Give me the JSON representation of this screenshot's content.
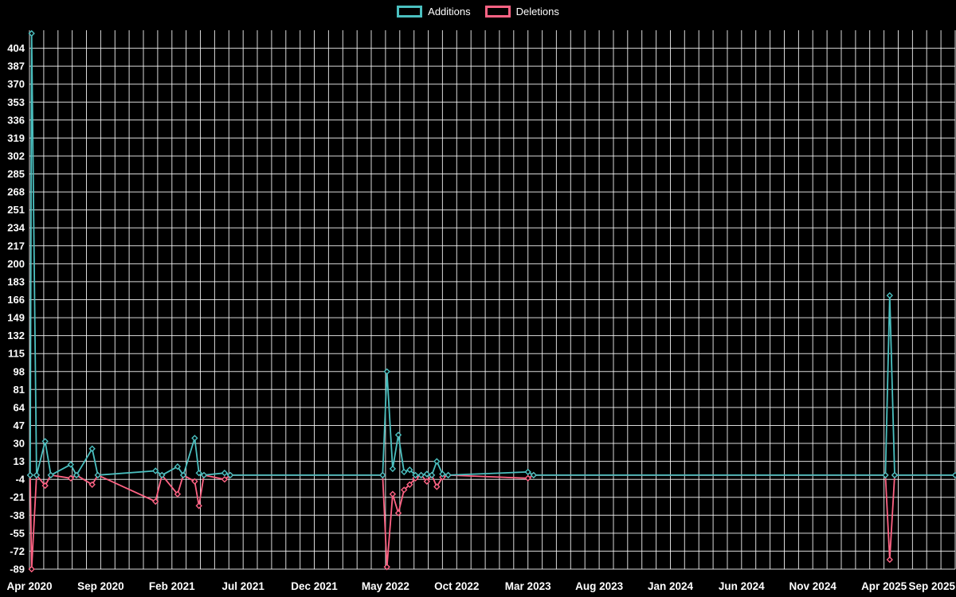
{
  "chart_data": {
    "type": "line",
    "background_color": "#000000",
    "grid_color": "rgba(255,255,255,0.85)",
    "text_color": "#ffffff",
    "legend": {
      "position": "top",
      "items": [
        {
          "label": "Additions",
          "color": "#4bc0c0"
        },
        {
          "label": "Deletions",
          "color": "#ff6384"
        }
      ]
    },
    "x_axis": {
      "unit": "month",
      "total_months": 65,
      "grid_every_month": true,
      "tick_labels": [
        "Apr 2020",
        "Sep 2020",
        "Feb 2021",
        "Jul 2021",
        "Dec 2021",
        "May 2022",
        "Oct 2022",
        "Mar 2023",
        "Aug 2023",
        "Jan 2024",
        "Jun 2024",
        "Nov 2024",
        "Apr 2025",
        "Sep 2025"
      ],
      "tick_months": [
        0,
        5,
        10,
        15,
        20,
        25,
        30,
        35,
        40,
        45,
        50,
        55,
        60,
        65
      ]
    },
    "y_axis": {
      "render_min": -89,
      "render_max": 421,
      "tick_step": 17,
      "ticks": [
        404,
        387,
        370,
        353,
        336,
        319,
        302,
        285,
        268,
        251,
        234,
        217,
        200,
        183,
        166,
        149,
        132,
        115,
        98,
        81,
        64,
        47,
        30,
        13,
        -4,
        -21,
        -38,
        -55,
        -72,
        -89
      ]
    },
    "series": [
      {
        "name": "Additions",
        "color": "#4bc0c0",
        "marker": "diamond",
        "value_index": 1
      },
      {
        "name": "Deletions",
        "color": "#ff6384",
        "marker": "diamond",
        "value_index": 2
      }
    ],
    "points": [
      [
        0.05,
        0,
        0
      ],
      [
        0.15,
        418,
        -89
      ],
      [
        0.5,
        0,
        0
      ],
      [
        1.1,
        32,
        -10
      ],
      [
        1.5,
        0,
        0
      ],
      [
        2.9,
        10,
        -3
      ],
      [
        3.3,
        0,
        0
      ],
      [
        4.4,
        25,
        -9
      ],
      [
        4.8,
        0,
        0
      ],
      [
        8.85,
        4,
        -25
      ],
      [
        9.3,
        0,
        0
      ],
      [
        10.4,
        8,
        -18
      ],
      [
        10.8,
        0,
        0
      ],
      [
        11.6,
        35,
        -6
      ],
      [
        11.9,
        2,
        -29
      ],
      [
        12.25,
        0,
        0
      ],
      [
        13.7,
        2,
        -4
      ],
      [
        14.1,
        0,
        0
      ],
      [
        24.8,
        0,
        0
      ],
      [
        25.1,
        98,
        -87
      ],
      [
        25.5,
        6,
        -18
      ],
      [
        25.9,
        38,
        -36
      ],
      [
        26.3,
        3,
        -14
      ],
      [
        26.7,
        5,
        -9
      ],
      [
        27.1,
        0,
        -3
      ],
      [
        27.5,
        0,
        0
      ],
      [
        27.9,
        1,
        -6
      ],
      [
        28.25,
        0,
        0
      ],
      [
        28.6,
        13,
        -11
      ],
      [
        29.0,
        1,
        -2
      ],
      [
        29.4,
        0,
        0
      ],
      [
        35.0,
        3,
        -3
      ],
      [
        35.4,
        0,
        0
      ],
      [
        60.1,
        0,
        0
      ],
      [
        60.4,
        170,
        -80
      ],
      [
        60.75,
        0,
        0
      ],
      [
        65,
        0,
        0
      ]
    ]
  }
}
